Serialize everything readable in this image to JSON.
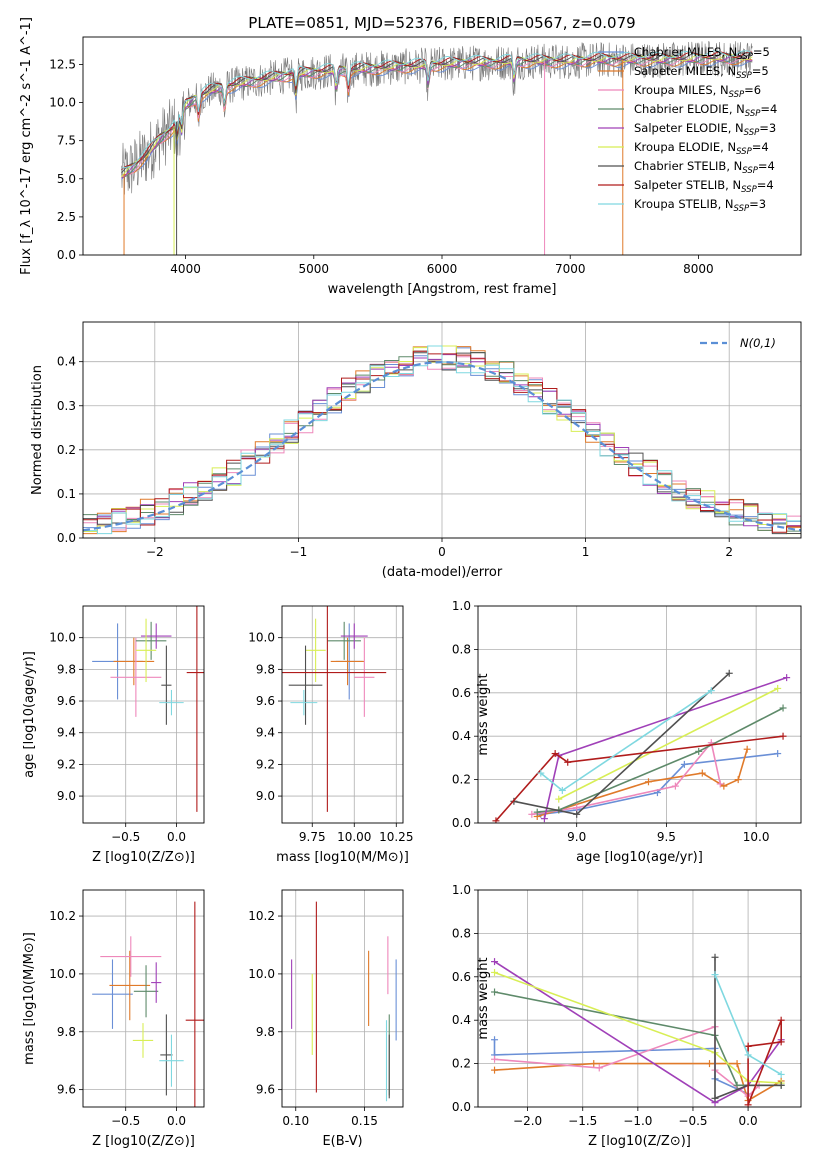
{
  "colors": {
    "chabrier_miles": "#6a8fd6",
    "salpeter_miles": "#e07a2a",
    "kroupa_miles": "#ee88bb",
    "chabrier_elodie": "#5e8a6a",
    "salpeter_elodie": "#a040b8",
    "kroupa_elodie": "#d8ee55",
    "chabrier_stelib": "#505050",
    "salpeter_stelib": "#b01c1c",
    "kroupa_stelib": "#7fd8e0",
    "gaussian": "#5a8fd6",
    "data": "#777777"
  },
  "chart_data": [
    {
      "id": "spectrum",
      "type": "line",
      "title": "PLATE=0851, MJD=52376, FIBERID=0567, z=0.079",
      "xlabel": "wavelength [Angstrom, rest frame]",
      "ylabel": "Flux [f_λ 10^-17 erg cm^-2 s^-1 A^-1]",
      "xlim": [
        3200,
        8800
      ],
      "ylim": [
        0,
        14.3
      ],
      "xticks": [
        4000,
        5000,
        6000,
        7000,
        8000
      ],
      "yticks": [
        0.0,
        2.5,
        5.0,
        7.5,
        10.0,
        12.5
      ],
      "grid": false,
      "legend_position": "upper-right",
      "legend": [
        {
          "key": "chabrier_miles",
          "text": "Chabrier MILES, N_SSP=5"
        },
        {
          "key": "salpeter_miles",
          "text": "Salpeter MILES, N_SSP=5"
        },
        {
          "key": "kroupa_miles",
          "text": "Kroupa MILES, N_SSP=6"
        },
        {
          "key": "chabrier_elodie",
          "text": "Chabrier ELODIE, N_SSP=4"
        },
        {
          "key": "salpeter_elodie",
          "text": "Salpeter ELODIE, N_SSP=3"
        },
        {
          "key": "kroupa_elodie",
          "text": "Kroupa ELODIE, N_SSP=4"
        },
        {
          "key": "chabrier_stelib",
          "text": "Chabrier STELIB, N_SSP=4"
        },
        {
          "key": "salpeter_stelib",
          "text": "Salpeter STELIB, N_SSP=4"
        },
        {
          "key": "kroupa_stelib",
          "text": "Kroupa STELIB, N_SSP=3"
        }
      ],
      "continuum": {
        "x": [
          3500,
          3600,
          3700,
          3800,
          3900,
          4000,
          4100,
          4200,
          4400,
          4600,
          4800,
          5000,
          5200,
          5400,
          5600,
          5800,
          6000,
          6200,
          6400,
          6600,
          6800,
          7000,
          7200,
          7400,
          7600,
          7800,
          8000,
          8200,
          8400
        ],
        "y": [
          5.2,
          5.8,
          6.6,
          7.6,
          8.3,
          9.8,
          10.4,
          10.8,
          11.2,
          11.5,
          11.8,
          12.0,
          12.1,
          12.2,
          12.3,
          12.4,
          12.5,
          12.6,
          12.6,
          12.7,
          12.7,
          12.7,
          12.8,
          12.8,
          12.8,
          12.8,
          12.9,
          12.9,
          12.9
        ]
      },
      "absorption_dips": [
        3934,
        3969,
        4102,
        4304,
        4861,
        5175,
        5270,
        5892,
        6563
      ]
    },
    {
      "id": "residuals",
      "type": "step",
      "xlabel": "(data-model)/error",
      "ylabel": "Normed distribution",
      "xlim": [
        -2.5,
        2.5
      ],
      "ylim": [
        0,
        0.49
      ],
      "xticks": [
        -2,
        -1,
        0,
        1,
        2
      ],
      "yticks": [
        0.0,
        0.1,
        0.2,
        0.3,
        0.4
      ],
      "grid": true,
      "legend_position": "upper-right",
      "gaussian_label": "N(0,1)",
      "bin_width": 0.1,
      "bin_start": -2.5
    },
    {
      "id": "age_vs_z",
      "type": "errorbar",
      "xlabel": "Z [log10(Z/Z⊙)]",
      "ylabel": "age [log10(age/yr)]",
      "xlim": [
        -0.92,
        0.27
      ],
      "ylim": [
        8.83,
        10.2
      ],
      "xticks": [
        -0.5,
        0.0
      ],
      "yticks": [
        9.0,
        9.2,
        9.4,
        9.6,
        9.8,
        10.0
      ],
      "grid": true,
      "points": [
        {
          "key": "chabrier_miles",
          "x": -0.58,
          "xerr": 0.25,
          "y": 9.85,
          "yerr": 0.24
        },
        {
          "key": "salpeter_miles",
          "x": -0.42,
          "xerr": 0.2,
          "y": 9.85,
          "yerr": 0.15
        },
        {
          "key": "kroupa_miles",
          "x": -0.4,
          "xerr": 0.25,
          "y": 9.75,
          "yerr": 0.25
        },
        {
          "key": "chabrier_elodie",
          "x": -0.25,
          "xerr": 0.15,
          "y": 9.98,
          "yerr": 0.12
        },
        {
          "key": "salpeter_elodie",
          "x": -0.2,
          "xerr": 0.15,
          "y": 10.01,
          "yerr": 0.08
        },
        {
          "key": "kroupa_elodie",
          "x": -0.3,
          "xerr": 0.1,
          "y": 9.92,
          "yerr": 0.2
        },
        {
          "key": "chabrier_stelib",
          "x": -0.1,
          "xerr": 0.05,
          "y": 9.7,
          "yerr": 0.25
        },
        {
          "key": "salpeter_stelib",
          "x": 0.2,
          "xerr": 0.1,
          "y": 9.78,
          "yerr": 0.88
        },
        {
          "key": "kroupa_stelib",
          "x": -0.05,
          "xerr": 0.12,
          "y": 9.59,
          "yerr": 0.08
        }
      ]
    },
    {
      "id": "age_vs_mass",
      "type": "errorbar",
      "xlabel": "mass [log10(M/M⊙)]",
      "ylabel": "",
      "xlim": [
        9.57,
        10.29
      ],
      "ylim": [
        8.83,
        10.2
      ],
      "xticks": [
        9.75,
        10.0,
        10.25
      ],
      "yticks": [
        9.0,
        9.2,
        9.4,
        9.6,
        9.8,
        10.0
      ],
      "grid": true,
      "points": [
        {
          "key": "chabrier_miles",
          "x": 9.97,
          "xerr": 0.08,
          "y": 9.85,
          "yerr": 0.24
        },
        {
          "key": "salpeter_miles",
          "x": 9.96,
          "xerr": 0.1,
          "y": 9.85,
          "yerr": 0.15
        },
        {
          "key": "kroupa_miles",
          "x": 10.06,
          "xerr": 0.06,
          "y": 9.75,
          "yerr": 0.25
        },
        {
          "key": "chabrier_elodie",
          "x": 9.94,
          "xerr": 0.1,
          "y": 9.98,
          "yerr": 0.12
        },
        {
          "key": "salpeter_elodie",
          "x": 10.0,
          "xerr": 0.08,
          "y": 10.01,
          "yerr": 0.08
        },
        {
          "key": "kroupa_elodie",
          "x": 9.77,
          "xerr": 0.06,
          "y": 9.92,
          "yerr": 0.2
        },
        {
          "key": "chabrier_stelib",
          "x": 9.71,
          "xerr": 0.1,
          "y": 9.7,
          "yerr": 0.25
        },
        {
          "key": "salpeter_stelib",
          "x": 9.84,
          "xerr": 0.35,
          "y": 9.78,
          "yerr": 0.88
        },
        {
          "key": "kroupa_stelib",
          "x": 9.7,
          "xerr": 0.08,
          "y": 9.59,
          "yerr": 0.08
        }
      ]
    },
    {
      "id": "weight_vs_age",
      "type": "line",
      "xlabel": "age [log10(age/yr)]",
      "ylabel": "mass weight",
      "xlim": [
        8.45,
        10.25
      ],
      "ylim": [
        0,
        1.0
      ],
      "xticks": [
        9.0,
        9.5,
        10.0
      ],
      "yticks": [
        0.0,
        0.2,
        0.4,
        0.6,
        0.8,
        1.0
      ],
      "grid": true,
      "series": [
        {
          "key": "chabrier_miles",
          "x": [
            8.8,
            9.0,
            9.45,
            9.6,
            10.12
          ],
          "y": [
            0.04,
            0.06,
            0.14,
            0.27,
            0.32
          ]
        },
        {
          "key": "salpeter_miles",
          "x": [
            8.78,
            8.9,
            9.4,
            9.7,
            9.82,
            9.9,
            9.95
          ],
          "y": [
            0.03,
            0.06,
            0.19,
            0.23,
            0.17,
            0.2,
            0.34
          ]
        },
        {
          "key": "kroupa_miles",
          "x": [
            8.75,
            9.0,
            9.55,
            9.75,
            9.8
          ],
          "y": [
            0.04,
            0.07,
            0.17,
            0.37,
            0.18
          ]
        },
        {
          "key": "chabrier_elodie",
          "x": [
            8.78,
            8.9,
            9.68,
            10.15
          ],
          "y": [
            0.05,
            0.06,
            0.33,
            0.53
          ]
        },
        {
          "key": "salpeter_elodie",
          "x": [
            8.82,
            8.9,
            10.17
          ],
          "y": [
            0.02,
            0.31,
            0.67
          ]
        },
        {
          "key": "kroupa_elodie",
          "x": [
            8.9,
            10.12
          ],
          "y": [
            0.11,
            0.62
          ]
        },
        {
          "key": "chabrier_stelib",
          "x": [
            8.65,
            9.0,
            9.85
          ],
          "y": [
            0.1,
            0.04,
            0.69
          ]
        },
        {
          "key": "salpeter_stelib",
          "x": [
            8.55,
            8.88,
            8.95,
            10.15
          ],
          "y": [
            0.01,
            0.32,
            0.28,
            0.4
          ]
        },
        {
          "key": "kroupa_stelib",
          "x": [
            8.8,
            8.92,
            9.75
          ],
          "y": [
            0.23,
            0.15,
            0.61
          ]
        }
      ]
    },
    {
      "id": "mass_vs_z",
      "type": "errorbar",
      "xlabel": "Z [log10(Z/Z⊙)]",
      "ylabel": "mass [log10(M/M⊙)]",
      "xlim": [
        -0.92,
        0.27
      ],
      "ylim": [
        9.54,
        10.29
      ],
      "xticks": [
        -0.5,
        0.0
      ],
      "yticks": [
        9.6,
        9.8,
        10.0,
        10.2
      ],
      "grid": true,
      "points": [
        {
          "key": "chabrier_miles",
          "x": -0.63,
          "xerr": 0.2,
          "y": 9.93,
          "yerr": 0.12
        },
        {
          "key": "salpeter_miles",
          "x": -0.46,
          "xerr": 0.2,
          "y": 9.96,
          "yerr": 0.12
        },
        {
          "key": "kroupa_miles",
          "x": -0.45,
          "xerr": 0.3,
          "y": 10.06,
          "yerr": 0.07
        },
        {
          "key": "chabrier_elodie",
          "x": -0.3,
          "xerr": 0.12,
          "y": 9.94,
          "yerr": 0.09
        },
        {
          "key": "salpeter_elodie",
          "x": -0.2,
          "xerr": 0.05,
          "y": 9.97,
          "yerr": 0.07
        },
        {
          "key": "kroupa_elodie",
          "x": -0.33,
          "xerr": 0.1,
          "y": 9.77,
          "yerr": 0.06
        },
        {
          "key": "chabrier_stelib",
          "x": -0.1,
          "xerr": 0.06,
          "y": 9.72,
          "yerr": 0.14
        },
        {
          "key": "salpeter_stelib",
          "x": 0.18,
          "xerr": 0.09,
          "y": 9.84,
          "yerr": 0.41
        },
        {
          "key": "kroupa_stelib",
          "x": -0.05,
          "xerr": 0.12,
          "y": 9.7,
          "yerr": 0.09
        }
      ]
    },
    {
      "id": "mass_vs_ebv",
      "type": "errorbar",
      "xlabel": "E(B-V)",
      "ylabel": "",
      "xlim": [
        0.09,
        0.178
      ],
      "ylim": [
        9.54,
        10.29
      ],
      "xticks": [
        0.1,
        0.15
      ],
      "yticks": [
        9.6,
        9.8,
        10.0,
        10.2
      ],
      "grid": true,
      "points": [
        {
          "key": "chabrier_miles",
          "x": 0.173,
          "xerr": 0,
          "y": 9.91,
          "yerr": 0.14
        },
        {
          "key": "salpeter_miles",
          "x": 0.153,
          "xerr": 0,
          "y": 9.95,
          "yerr": 0.13
        },
        {
          "key": "kroupa_miles",
          "x": 0.167,
          "xerr": 0,
          "y": 10.03,
          "yerr": 0.1
        },
        {
          "key": "chabrier_elodie",
          "x": 0.168,
          "xerr": 0,
          "y": 9.72,
          "yerr": 0.14
        },
        {
          "key": "salpeter_elodie",
          "x": 0.097,
          "xerr": 0,
          "y": 9.93,
          "yerr": 0.12
        },
        {
          "key": "kroupa_elodie",
          "x": 0.112,
          "xerr": 0,
          "y": 9.86,
          "yerr": 0.14
        },
        {
          "key": "chabrier_stelib",
          "x": 0.168,
          "xerr": 0,
          "y": 9.68,
          "yerr": 0.11
        },
        {
          "key": "salpeter_stelib",
          "x": 0.115,
          "xerr": 0,
          "y": 9.92,
          "yerr": 0.33
        },
        {
          "key": "kroupa_stelib",
          "x": 0.166,
          "xerr": 0,
          "y": 9.7,
          "yerr": 0.14
        }
      ]
    },
    {
      "id": "weight_vs_z",
      "type": "line",
      "xlabel": "Z [log10(Z/Z⊙)]",
      "ylabel": "mass weight",
      "xlim": [
        -2.45,
        0.48
      ],
      "ylim": [
        0,
        1.0
      ],
      "xticks": [
        -2.0,
        -1.5,
        -1.0,
        -0.5,
        0.0
      ],
      "yticks": [
        0.0,
        0.2,
        0.4,
        0.6,
        0.8,
        1.0
      ],
      "grid": true,
      "series": [
        {
          "key": "chabrier_miles",
          "x": [
            -2.3,
            -2.3,
            -0.3,
            -0.3,
            0.0
          ],
          "y": [
            0.31,
            0.24,
            0.27,
            0.13,
            0.06
          ]
        },
        {
          "key": "salpeter_miles",
          "x": [
            -2.3,
            -1.4,
            -0.35,
            -0.1,
            0.0,
            0.3
          ],
          "y": [
            0.17,
            0.2,
            0.2,
            0.2,
            0.03,
            0.12
          ]
        },
        {
          "key": "kroupa_miles",
          "x": [
            -2.3,
            -1.35,
            -0.3,
            -0.3,
            0.0,
            0.1
          ],
          "y": [
            0.22,
            0.18,
            0.37,
            0.17,
            0.05,
            0.1
          ]
        },
        {
          "key": "chabrier_elodie",
          "x": [
            -2.3,
            -0.3,
            -0.1,
            0.3
          ],
          "y": [
            0.53,
            0.33,
            0.1,
            0.1
          ]
        },
        {
          "key": "salpeter_elodie",
          "x": [
            -2.3,
            -0.3,
            0.0,
            0.3
          ],
          "y": [
            0.67,
            0.02,
            0.1,
            0.31
          ]
        },
        {
          "key": "kroupa_elodie",
          "x": [
            -2.3,
            -0.3,
            0.0,
            0.3
          ],
          "y": [
            0.62,
            0.25,
            0.12,
            0.11
          ]
        },
        {
          "key": "chabrier_stelib",
          "x": [
            -0.3,
            -0.3,
            0.0,
            0.3
          ],
          "y": [
            0.69,
            0.04,
            0.1,
            0.1
          ]
        },
        {
          "key": "salpeter_stelib",
          "x": [
            0.0,
            0.0,
            0.3,
            0.3,
            0.0
          ],
          "y": [
            0.28,
            0.01,
            0.4,
            0.3,
            0.28
          ]
        },
        {
          "key": "kroupa_stelib",
          "x": [
            -0.3,
            0.0,
            0.3
          ],
          "y": [
            0.61,
            0.24,
            0.15
          ]
        }
      ]
    }
  ]
}
